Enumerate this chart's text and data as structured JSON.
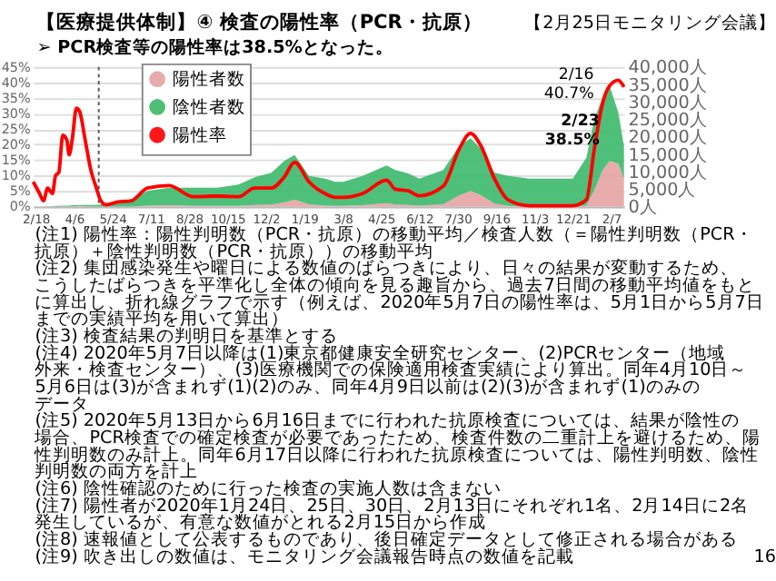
{
  "chart_data": {
    "type": "line",
    "title": "【医療提供体制】④ 検査の陽性率（PCR・抗原）",
    "subtitle": "➢ PCR検査等の陽性率は38.5%となった。",
    "x": [
      "2020-02-15",
      "2020-02-23",
      "2020-02-28",
      "2020-03-04",
      "2020-03-10",
      "2020-03-14",
      "2020-03-18",
      "2020-03-23",
      "2020-03-28",
      "2020-03-31",
      "2020-04-04",
      "2020-04-09",
      "2020-04-13",
      "2020-04-20",
      "2020-04-27",
      "2020-05-04",
      "2020-05-09",
      "2020-05-16",
      "2020-05-31",
      "2020-06-17",
      "2020-07-07",
      "2020-08-03",
      "2020-09-02",
      "2020-10-02",
      "2020-10-29",
      "2020-11-18",
      "2020-12-09",
      "2020-12-25",
      "2021-01-07",
      "2021-01-25",
      "2021-02-14",
      "2021-02-27",
      "2021-03-09",
      "2021-04-02",
      "2021-05-02",
      "2021-05-13",
      "2021-05-29",
      "2021-06-12",
      "2021-07-12",
      "2021-08-01",
      "2021-08-15",
      "2021-08-28",
      "2021-09-14",
      "2021-10-01",
      "2021-10-28",
      "2021-12-21",
      "2022-01-07",
      "2022-01-17",
      "2022-01-27",
      "2022-02-05",
      "2022-02-16",
      "2022-02-23"
    ],
    "series": [
      {
        "name": "陽性者数",
        "color": "#e6a3a3",
        "type": "area",
        "axis": "y2",
        "values": [
          0,
          0,
          0,
          0,
          0,
          0,
          0,
          100,
          100,
          100,
          100,
          100,
          200,
          100,
          100,
          0,
          0,
          0,
          0,
          0,
          300,
          400,
          200,
          200,
          200,
          500,
          600,
          1200,
          2000,
          700,
          300,
          200,
          200,
          400,
          1000,
          600,
          500,
          300,
          700,
          3200,
          4500,
          3300,
          900,
          200,
          0,
          0,
          300,
          4700,
          10300,
          13100,
          12300,
          8000
        ]
      },
      {
        "name": "陰性者数",
        "color": "#3cb96a",
        "type": "area",
        "axis": "y2",
        "values": [
          0,
          0,
          0,
          100,
          100,
          200,
          200,
          200,
          200,
          200,
          300,
          300,
          300,
          400,
          400,
          500,
          600,
          700,
          1000,
          2000,
          4200,
          5000,
          5200,
          5200,
          6100,
          7900,
          9100,
          11900,
          12800,
          8100,
          7700,
          6900,
          6900,
          8400,
          10800,
          9900,
          9000,
          7700,
          9800,
          14200,
          15100,
          13300,
          8800,
          8600,
          8000,
          8000,
          13700,
          20400,
          20800,
          21500,
          14600,
          9400
        ]
      },
      {
        "name": "陽性率",
        "color": "#ff0000",
        "type": "line",
        "values": [
          8,
          4.2,
          1.9,
          6,
          4.2,
          10,
          11,
          23,
          21.5,
          16.7,
          22,
          31.7,
          30.7,
          21.5,
          11.9,
          6,
          2.2,
          0.6,
          1.5,
          1.9,
          6,
          6.8,
          3.2,
          3.4,
          3.2,
          6,
          6,
          9.5,
          14.3,
          8,
          4.2,
          3,
          3,
          4.2,
          8.5,
          5.6,
          5.1,
          3.5,
          6.6,
          18.6,
          23.6,
          19.6,
          9,
          2.2,
          0.3,
          0.3,
          2.2,
          18.6,
          33,
          38.9,
          40.7,
          38.5
        ]
      }
    ],
    "stacked": true,
    "xlim": [
      "2020-02-15",
      "2022-02-23"
    ],
    "xticks": [
      {
        "value": "2020-02-18",
        "label": "2/18"
      },
      {
        "value": "2020-04-06",
        "label": "4/6"
      },
      {
        "value": "2020-05-24",
        "label": "5/24"
      },
      {
        "value": "2020-07-11",
        "label": "7/11"
      },
      {
        "value": "2020-08-28",
        "label": "8/28"
      },
      {
        "value": "2020-10-15",
        "label": "10/15"
      },
      {
        "value": "2020-12-02",
        "label": "12/2"
      },
      {
        "value": "2021-01-19",
        "label": "1/19"
      },
      {
        "value": "2021-03-08",
        "label": "3/8"
      },
      {
        "value": "2021-04-25",
        "label": "4/25"
      },
      {
        "value": "2021-06-12",
        "label": "6/12"
      },
      {
        "value": "2021-07-30",
        "label": "7/30"
      },
      {
        "value": "2021-09-16",
        "label": "9/16"
      },
      {
        "value": "2021-11-03",
        "label": "11/3"
      },
      {
        "value": "2021-12-21",
        "label": "12/21"
      },
      {
        "value": "2022-02-07",
        "label": "2/7"
      }
    ],
    "ylim": [
      0,
      45
    ],
    "yticks": [
      {
        "value": 0,
        "label": "0%"
      },
      {
        "value": 5,
        "label": "5%"
      },
      {
        "value": 10,
        "label": "10%"
      },
      {
        "value": 15,
        "label": "15%"
      },
      {
        "value": 20,
        "label": "20%"
      },
      {
        "value": 25,
        "label": "25%"
      },
      {
        "value": 30,
        "label": "30%"
      },
      {
        "value": 35,
        "label": "35%"
      },
      {
        "value": 40,
        "label": "40%"
      },
      {
        "value": 45,
        "label": "45%"
      }
    ],
    "y2lim": [
      0,
      40000
    ],
    "y2ticks": [
      {
        "value": 0,
        "label": "0人"
      },
      {
        "value": 5000,
        "label": "5,000人"
      },
      {
        "value": 10000,
        "label": "10,000人"
      },
      {
        "value": 15000,
        "label": "15,000人"
      },
      {
        "value": 20000,
        "label": "20,000人"
      },
      {
        "value": 25000,
        "label": "25,000人"
      },
      {
        "value": 30000,
        "label": "30,000人"
      },
      {
        "value": 35000,
        "label": "35,000人"
      },
      {
        "value": 40000,
        "label": "40,000人"
      }
    ],
    "ref_lines": [
      {
        "axis": "x",
        "value": "2020-05-07",
        "label": null,
        "color": "#555555",
        "line_style": "dotted"
      }
    ],
    "grid": "y",
    "legend": "top left",
    "marker": "none",
    "line_style": "solid",
    "annotations": [
      "【2月25日モニタリング会議】",
      {
        "text": "2/16\n40.7%",
        "x": "2022-02-16",
        "y": 40.7
      },
      {
        "text": "2/23\n38.5%",
        "x": "2022-02-23",
        "y": 38.5
      },
      "(注1) 陽性率：陽性判明数（PCR・抗原）の移動平均／検査人数（＝陽性判明数（PCR・抗原）＋陰性判明数（PCR・抗原））の移動平均",
      "(注2) 集団感染発生や曜日による数値のばらつきにより、日々の結果が変動するため、こうしたばらつきを平準化し全体の傾向を見る趣旨から、過去7日間の移動平均値をもとに算出し、折れ線グラフで示す（例えば、2020年5月7日の陽性率は、5月1日から5月7日までの実績平均を用いて算出）",
      "(注3) 検査結果の判明日を基準とする",
      "(注4) 2020年5月7日以降は(1)東京都健康安全研究センター、(2)PCRセンター（地域外来・検査センター）、(3)医療機関での保険適用検査実績により算出。同年4月10日～5月6日は(3)が含まれず(1)(2)のみ、同年4月9日以前は(2)(3)が含まれず(1)のみのデータ",
      "(注5) 2020年5月13日から6月16日までに行われた抗原検査については、結果が陰性の場合、PCR検査での確定検査が必要であったため、検査件数の二重計上を避けるため、陽性判明数のみ計上。同年6月17日以降に行われた抗原検査については、陽性判明数、陰性判明数の両方を計上",
      "(注6) 陰性確認のために行った検査の実施人数は含まない",
      "(注7) 陽性者が2020年1月24日、25日、30日、2月13日にそれぞれ1名、2月14日に2名発生しているが、有意な数値がとれる2月15日から作成",
      "(注8) 速報値として公表するものであり、後日確定データとして修正される場合がある",
      "(注9) 吹き出しの数値は、モニタリング会議報告時点の数値を記載",
      "16"
    ]
  }
}
